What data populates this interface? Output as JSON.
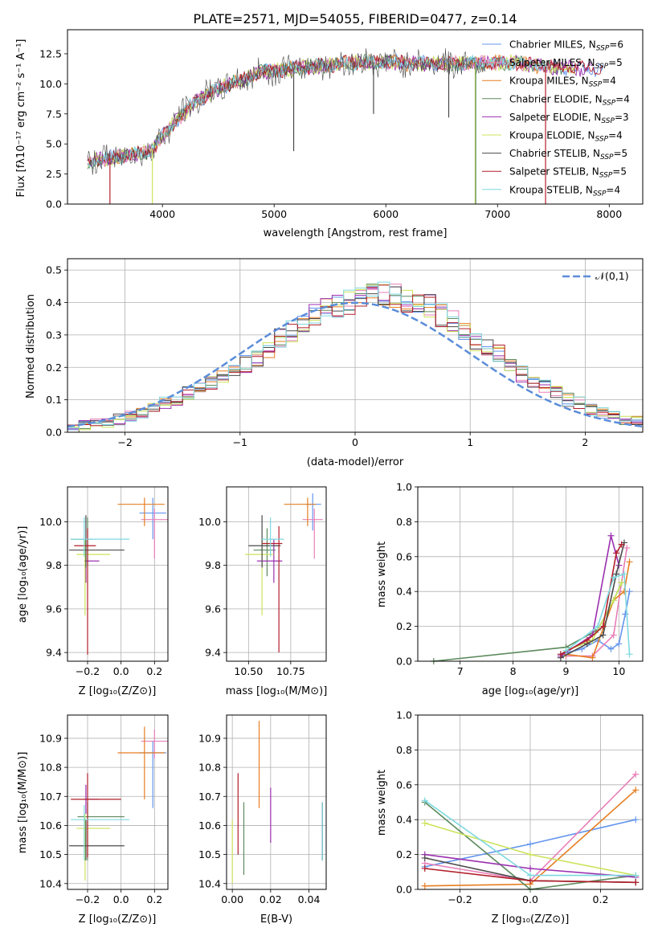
{
  "colors": [
    "#6495ed",
    "#e87fb8",
    "#e67e22",
    "#5d8a5d",
    "#9b30b0",
    "#cbe35a",
    "#4a4a4a",
    "#b21e2a",
    "#7fd8e0"
  ],
  "chart_data": [
    {
      "id": "spectrum",
      "type": "line",
      "title": "PLATE=2571, MJD=54055, FIBERID=0477, z=0.14",
      "xlabel": "wavelength [Angstrom, rest frame]",
      "ylabel": "Flux [fλ10⁻¹⁷ erg cm⁻² s⁻¹ A⁻¹]",
      "xlim": [
        3150,
        8300
      ],
      "ylim": [
        0,
        14.5
      ],
      "xticks": [
        4000,
        5000,
        6000,
        7000,
        8000
      ],
      "yticks": [
        0.0,
        2.5,
        5.0,
        7.5,
        10.0,
        12.5
      ],
      "grid": false,
      "legend_position": "top-right",
      "legend": [
        {
          "label": "Chabrier MILES, N",
          "sub": "SSP",
          "tail": "=6"
        },
        {
          "label": "Salpeter MILES, N",
          "sub": "SSP",
          "tail": "=5"
        },
        {
          "label": "Kroupa MILES, N",
          "sub": "SSP",
          "tail": "=4"
        },
        {
          "label": "Chabrier ELODIE, N",
          "sub": "SSP",
          "tail": "=4"
        },
        {
          "label": "Salpeter ELODIE, N",
          "sub": "SSP",
          "tail": "=3"
        },
        {
          "label": "Kroupa ELODIE, N",
          "sub": "SSP",
          "tail": "=4"
        },
        {
          "label": "Chabrier STELIB, N",
          "sub": "SSP",
          "tail": "=5"
        },
        {
          "label": "Salpeter STELIB, N",
          "sub": "SSP",
          "tail": "=5"
        },
        {
          "label": "Kroupa STELIB, N",
          "sub": "SSP",
          "tail": "=4"
        }
      ],
      "series_color_order": [
        0,
        2,
        3,
        4,
        5,
        1,
        7,
        8,
        6
      ],
      "continuum": {
        "x": [
          3330,
          3500,
          3700,
          3900,
          4000,
          4150,
          4300,
          4500,
          4700,
          4900,
          5100,
          5300,
          5500,
          5800,
          6000,
          6300,
          6600,
          6900,
          7200,
          7500,
          7900
        ],
        "y": [
          3.5,
          3.8,
          4.1,
          4.4,
          5.6,
          7.2,
          8.6,
          9.6,
          10.3,
          11.0,
          11.2,
          11.4,
          11.6,
          11.8,
          11.8,
          11.7,
          11.7,
          11.8,
          11.7,
          11.4,
          11.2
        ]
      },
      "absorption": [
        {
          "x": 3530,
          "y": 0.0,
          "series": 7
        },
        {
          "x": 3910,
          "y": 0.0,
          "series": 5
        },
        {
          "x": 6800,
          "y": 0.0,
          "series": 5
        },
        {
          "x": 6805,
          "y": 0.0,
          "series": 3
        },
        {
          "x": 7430,
          "y": 0.0,
          "series": 7
        },
        {
          "x": 5175,
          "y": 4.4,
          "series": 6
        },
        {
          "x": 5890,
          "y": 7.5,
          "series": 6
        },
        {
          "x": 6563,
          "y": 7.2,
          "series": 6
        }
      ]
    },
    {
      "id": "residuals",
      "type": "step",
      "xlabel": "(data-model)/error",
      "ylabel": "Normed distribution",
      "xlim": [
        -2.5,
        2.5
      ],
      "ylim": [
        0,
        0.535
      ],
      "xticks": [
        -2,
        -1,
        0,
        1,
        2
      ],
      "yticks": [
        0.0,
        0.1,
        0.2,
        0.3,
        0.4,
        0.5
      ],
      "grid": true,
      "gaussian": {
        "label": "𝒩(0,1)",
        "color": "#5b8dd9"
      },
      "bins": {
        "edges_start": -2.5,
        "width": 0.1,
        "base": [
          0.01,
          0.02,
          0.025,
          0.03,
          0.04,
          0.05,
          0.055,
          0.07,
          0.09,
          0.1,
          0.12,
          0.14,
          0.15,
          0.17,
          0.19,
          0.21,
          0.23,
          0.26,
          0.29,
          0.31,
          0.33,
          0.36,
          0.38,
          0.39,
          0.4,
          0.41,
          0.42,
          0.43,
          0.42,
          0.41,
          0.4,
          0.39,
          0.36,
          0.34,
          0.31,
          0.28,
          0.26,
          0.24,
          0.21,
          0.18,
          0.16,
          0.14,
          0.12,
          0.1,
          0.09,
          0.07,
          0.06,
          0.05,
          0.04,
          0.035
        ]
      }
    },
    {
      "id": "age-vs-z",
      "type": "errorbar",
      "xlabel": "Z [log₁₀(Z/Z⊙)]",
      "ylabel": "age  [log₁₀(age/yr)]",
      "xlim": [
        -0.32,
        0.28
      ],
      "ylim": [
        9.36,
        10.16
      ],
      "xticks": [
        -0.2,
        0.0,
        0.2
      ],
      "yticks": [
        9.4,
        9.6,
        9.8,
        10.0
      ],
      "grid": true,
      "points": [
        {
          "series": 0,
          "x": 0.19,
          "y": 10.04,
          "xerr": [
            0.08,
            0.08
          ],
          "yerr": [
            0.12,
            0.07
          ]
        },
        {
          "series": 1,
          "x": 0.2,
          "y": 10.01,
          "xerr": [
            0.08,
            0.08
          ],
          "yerr": [
            0.18,
            0.05
          ]
        },
        {
          "series": 2,
          "x": 0.14,
          "y": 10.08,
          "xerr": [
            0.16,
            0.12
          ],
          "yerr": [
            0.1,
            0.03
          ]
        },
        {
          "series": 3,
          "x": -0.2,
          "y": 9.92,
          "xerr": [
            0.1,
            0.03
          ],
          "yerr": [
            0.12,
            0.1
          ]
        },
        {
          "series": 4,
          "x": -0.21,
          "y": 9.82,
          "xerr": [
            0.01,
            0.08
          ],
          "yerr": [
            0.1,
            0.1
          ]
        },
        {
          "series": 5,
          "x": -0.215,
          "y": 9.85,
          "xerr": [
            0.05,
            0.15
          ],
          "yerr": [
            0.28,
            0.07
          ]
        },
        {
          "series": 6,
          "x": -0.21,
          "y": 9.87,
          "xerr": [
            0.1,
            0.23
          ],
          "yerr": [
            0.08,
            0.16
          ]
        },
        {
          "series": 7,
          "x": -0.2,
          "y": 9.89,
          "xerr": [
            0.08,
            0.05
          ],
          "yerr": [
            0.5,
            0.08
          ]
        },
        {
          "series": 8,
          "x": -0.22,
          "y": 9.92,
          "xerr": [
            0.08,
            0.27
          ],
          "yerr": [
            0.08,
            0.1
          ]
        }
      ]
    },
    {
      "id": "age-vs-mass",
      "type": "errorbar",
      "xlabel": "mass [log₁₀(M/M⊙)]",
      "ylabel": "",
      "xlim": [
        10.37,
        10.96
      ],
      "ylim": [
        9.36,
        10.16
      ],
      "xticks": [
        10.5,
        10.75
      ],
      "yticks": [
        9.4,
        9.6,
        9.8,
        10.0
      ],
      "grid": true,
      "points": [
        {
          "series": 0,
          "x": 10.88,
          "y": 10.08,
          "xerr": [
            0.04,
            0.05
          ],
          "yerr": [
            0.12,
            0.05
          ]
        },
        {
          "series": 1,
          "x": 10.89,
          "y": 10.01,
          "xerr": [
            0.07,
            0.05
          ],
          "yerr": [
            0.18,
            0.05
          ]
        },
        {
          "series": 2,
          "x": 10.85,
          "y": 10.08,
          "xerr": [
            0.14,
            0.05
          ],
          "yerr": [
            0.1,
            0.03
          ]
        },
        {
          "series": 3,
          "x": 10.61,
          "y": 9.87,
          "xerr": [
            0.08,
            0.05
          ],
          "yerr": [
            0.12,
            0.1
          ]
        },
        {
          "series": 4,
          "x": 10.65,
          "y": 9.82,
          "xerr": [
            0.1,
            0.05
          ],
          "yerr": [
            0.1,
            0.1
          ]
        },
        {
          "series": 5,
          "x": 10.58,
          "y": 9.85,
          "xerr": [
            0.1,
            0.07
          ],
          "yerr": [
            0.28,
            0.07
          ]
        },
        {
          "series": 6,
          "x": 10.58,
          "y": 9.89,
          "xerr": [
            0.08,
            0.11
          ],
          "yerr": [
            0.1,
            0.14
          ]
        },
        {
          "series": 7,
          "x": 10.68,
          "y": 9.9,
          "xerr": [
            0.1,
            0.02
          ],
          "yerr": [
            0.5,
            0.08
          ]
        },
        {
          "series": 8,
          "x": 10.63,
          "y": 9.92,
          "xerr": [
            0.05,
            0.08
          ],
          "yerr": [
            0.08,
            0.1
          ]
        }
      ]
    },
    {
      "id": "mass-weight-vs-age",
      "type": "line",
      "xlabel": "age  [log₁₀(age/yr)]",
      "ylabel": "mass weight",
      "xlim": [
        6.2,
        10.45
      ],
      "ylim": [
        0,
        1.0
      ],
      "xticks": [
        7,
        8,
        9,
        10
      ],
      "yticks": [
        0.0,
        0.2,
        0.4,
        0.6,
        0.8,
        1.0
      ],
      "grid": true,
      "series": [
        {
          "series": 0,
          "x": [
            8.9,
            9.3,
            9.6,
            9.85,
            10.0,
            10.12,
            10.2
          ],
          "y": [
            0.04,
            0.07,
            0.12,
            0.07,
            0.1,
            0.27,
            0.4
          ]
        },
        {
          "series": 1,
          "x": [
            9.0,
            9.5,
            9.9,
            10.05,
            10.15
          ],
          "y": [
            0.03,
            0.03,
            0.15,
            0.45,
            0.65
          ]
        },
        {
          "series": 2,
          "x": [
            9.0,
            9.5,
            9.9,
            10.1,
            10.2
          ],
          "y": [
            0.04,
            0.02,
            0.35,
            0.4,
            0.57
          ]
        },
        {
          "series": 3,
          "x": [
            6.5,
            9.0,
            9.6,
            9.9,
            10.05
          ],
          "y": [
            0.0,
            0.08,
            0.18,
            0.35,
            0.45
          ]
        },
        {
          "series": 4,
          "x": [
            8.9,
            9.5,
            9.85,
            10.0
          ],
          "y": [
            0.03,
            0.15,
            0.72,
            0.55
          ]
        },
        {
          "series": 5,
          "x": [
            9.0,
            9.5,
            9.9,
            10.05
          ],
          "y": [
            0.06,
            0.12,
            0.35,
            0.45
          ]
        },
        {
          "series": 6,
          "x": [
            8.9,
            9.4,
            9.7,
            9.95,
            10.1
          ],
          "y": [
            0.02,
            0.1,
            0.15,
            0.5,
            0.68
          ]
        },
        {
          "series": 7,
          "x": [
            8.9,
            9.4,
            9.7,
            9.95,
            10.05
          ],
          "y": [
            0.04,
            0.12,
            0.2,
            0.62,
            0.67
          ]
        },
        {
          "series": 8,
          "x": [
            9.0,
            9.6,
            9.9,
            10.1,
            10.2
          ],
          "y": [
            0.06,
            0.2,
            0.48,
            0.5,
            0.04
          ]
        }
      ]
    },
    {
      "id": "mass-vs-z",
      "type": "errorbar",
      "xlabel": "Z [log₁₀(Z/Z⊙)]",
      "ylabel": "mass [log₁₀(M/M⊙)]",
      "xlim": [
        -0.32,
        0.28
      ],
      "ylim": [
        10.38,
        10.98
      ],
      "xticks": [
        -0.2,
        0.0,
        0.2
      ],
      "yticks": [
        10.4,
        10.5,
        10.6,
        10.7,
        10.8,
        10.9
      ],
      "grid": true,
      "points": [
        {
          "series": 0,
          "x": 0.19,
          "y": 10.85,
          "xerr": [
            0.08,
            0.08
          ],
          "yerr": [
            0.19,
            0.04
          ]
        },
        {
          "series": 1,
          "x": 0.2,
          "y": 10.89,
          "xerr": [
            0.08,
            0.08
          ],
          "yerr": [
            0.06,
            0.04
          ]
        },
        {
          "series": 2,
          "x": 0.14,
          "y": 10.85,
          "xerr": [
            0.16,
            0.12
          ],
          "yerr": [
            0.16,
            0.09
          ]
        },
        {
          "series": 3,
          "x": -0.2,
          "y": 10.63,
          "xerr": [
            0.06,
            0.22
          ],
          "yerr": [
            0.15,
            0.05
          ]
        },
        {
          "series": 4,
          "x": -0.21,
          "y": 10.69,
          "xerr": [
            0.01,
            0.08
          ],
          "yerr": [
            0.05,
            0.05
          ]
        },
        {
          "series": 5,
          "x": -0.215,
          "y": 10.59,
          "xerr": [
            0.05,
            0.15
          ],
          "yerr": [
            0.18,
            0.05
          ]
        },
        {
          "series": 6,
          "x": -0.21,
          "y": 10.53,
          "xerr": [
            0.1,
            0.23
          ],
          "yerr": [
            0.05,
            0.09
          ]
        },
        {
          "series": 7,
          "x": -0.2,
          "y": 10.69,
          "xerr": [
            0.1,
            0.2
          ],
          "yerr": [
            0.2,
            0.09
          ]
        },
        {
          "series": 8,
          "x": -0.22,
          "y": 10.62,
          "xerr": [
            0.08,
            0.27
          ],
          "yerr": [
            0.14,
            0.05
          ]
        }
      ]
    },
    {
      "id": "mass-vs-ebv",
      "type": "errorbar",
      "xlabel": "E(B-V)",
      "ylabel": "",
      "xlim": [
        -0.003,
        0.049
      ],
      "ylim": [
        10.38,
        10.98
      ],
      "xticks": [
        0.0,
        0.02,
        0.04
      ],
      "yticks": [
        10.4,
        10.5,
        10.6,
        10.7,
        10.8,
        10.9
      ],
      "grid": true,
      "points": [
        {
          "series": 0,
          "x": 0.047,
          "y": 10.58,
          "xerr": [
            0,
            0
          ],
          "yerr": [
            0.1,
            0.1
          ]
        },
        {
          "series": 1,
          "x": 0.047,
          "y": 10.58,
          "xerr": [
            0,
            0
          ],
          "yerr": [
            0.1,
            0.1
          ]
        },
        {
          "series": 2,
          "x": 0.014,
          "y": 10.84,
          "xerr": [
            0,
            0
          ],
          "yerr": [
            0.18,
            0.12
          ]
        },
        {
          "series": 3,
          "x": 0.006,
          "y": 10.56,
          "xerr": [
            0,
            0
          ],
          "yerr": [
            0.13,
            0.12
          ]
        },
        {
          "series": 4,
          "x": 0.02,
          "y": 10.64,
          "xerr": [
            0,
            0
          ],
          "yerr": [
            0.1,
            0.09
          ]
        },
        {
          "series": 5,
          "x": 0.0,
          "y": 10.5,
          "xerr": [
            0,
            0
          ],
          "yerr": [
            0.1,
            0.12
          ]
        },
        {
          "series": 6,
          "x": 0.047,
          "y": 10.58,
          "xerr": [
            0,
            0
          ],
          "yerr": [
            0.1,
            0.1
          ]
        },
        {
          "series": 7,
          "x": 0.003,
          "y": 10.64,
          "xerr": [
            0,
            0
          ],
          "yerr": [
            0.14,
            0.14
          ]
        },
        {
          "series": 8,
          "x": 0.047,
          "y": 10.58,
          "xerr": [
            0,
            0
          ],
          "yerr": [
            0.1,
            0.1
          ]
        }
      ]
    },
    {
      "id": "mass-weight-vs-z",
      "type": "line",
      "xlabel": "Z [log₁₀(Z/Z⊙)]",
      "ylabel": "mass weight",
      "xlim": [
        -0.32,
        0.32
      ],
      "ylim": [
        0,
        1.0
      ],
      "xticks": [
        -0.2,
        0.0,
        0.2
      ],
      "yticks": [
        0.0,
        0.2,
        0.4,
        0.6,
        0.8,
        1.0
      ],
      "grid": true,
      "series": [
        {
          "series": 0,
          "x": [
            -0.3,
            0.0,
            0.3
          ],
          "y": [
            0.13,
            0.26,
            0.4
          ]
        },
        {
          "series": 1,
          "x": [
            -0.3,
            0.0,
            0.3
          ],
          "y": [
            0.15,
            0.05,
            0.66
          ]
        },
        {
          "series": 2,
          "x": [
            -0.3,
            0.0,
            0.3
          ],
          "y": [
            0.02,
            0.03,
            0.57
          ]
        },
        {
          "series": 3,
          "x": [
            -0.3,
            0.0,
            0.3
          ],
          "y": [
            0.5,
            0.0,
            0.08
          ]
        },
        {
          "series": 4,
          "x": [
            -0.3,
            0.0,
            0.3
          ],
          "y": [
            0.2,
            0.12,
            0.07
          ]
        },
        {
          "series": 5,
          "x": [
            -0.3,
            0.0,
            0.3
          ],
          "y": [
            0.38,
            0.2,
            0.08
          ]
        },
        {
          "series": 6,
          "x": [
            -0.3,
            0.0,
            0.3
          ],
          "y": [
            0.18,
            0.05,
            0.04
          ]
        },
        {
          "series": 7,
          "x": [
            -0.3,
            0.0,
            0.3
          ],
          "y": [
            0.12,
            0.05,
            0.04
          ]
        },
        {
          "series": 8,
          "x": [
            -0.3,
            0.0,
            0.3
          ],
          "y": [
            0.51,
            0.08,
            0.08
          ]
        }
      ]
    }
  ]
}
